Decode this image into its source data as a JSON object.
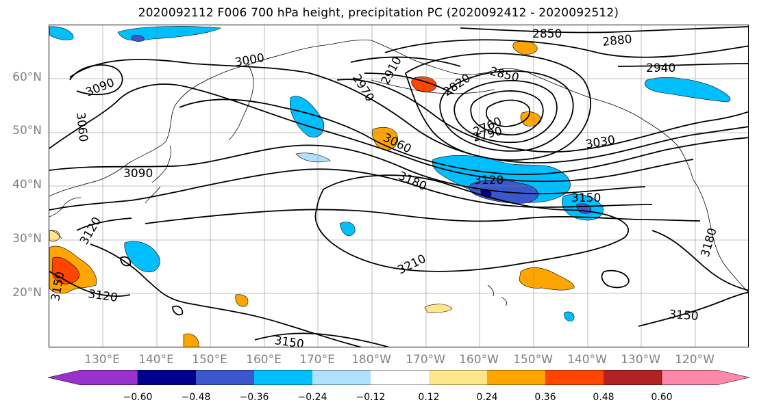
{
  "title": "2020092112 F006 700 hPa height, precipitation PC (2020092412 - 2020092512)",
  "lat_labels": [
    "60°N",
    "50°N",
    "40°N",
    "30°N",
    "20°N"
  ],
  "lon_labels": [
    "130°E",
    "140°E",
    "150°E",
    "160°E",
    "170°E",
    "180°W",
    "170°W",
    "160°W",
    "150°W",
    "140°W",
    "130°W",
    "120°W"
  ],
  "contour_labels": [
    "2850",
    "2880",
    "2940",
    "3000",
    "3090",
    "2910",
    "2970",
    "2850",
    "2820",
    "2760",
    "2790",
    "3060",
    "3060",
    "3030",
    "3090",
    "3180",
    "3120",
    "3150",
    "3120",
    "3210",
    "3120",
    "3150",
    "3150",
    "3150",
    "3180"
  ],
  "colorbar": {
    "ticks": [
      "−0.60",
      "−0.48",
      "−0.36",
      "−0.24",
      "−0.12",
      "0.12",
      "0.24",
      "0.36",
      "0.48",
      "0.60"
    ],
    "colors": [
      "#9932cc",
      "#00008b",
      "#3a58cc",
      "#00bfff",
      "#b0e2ff",
      "#ffffff",
      "#ffe68a",
      "#ffa500",
      "#ff4500",
      "#b22222",
      "#ff88aa"
    ]
  },
  "colors": {
    "contour": "#000000",
    "grid": "#808080",
    "axis_label": "#808080"
  }
}
